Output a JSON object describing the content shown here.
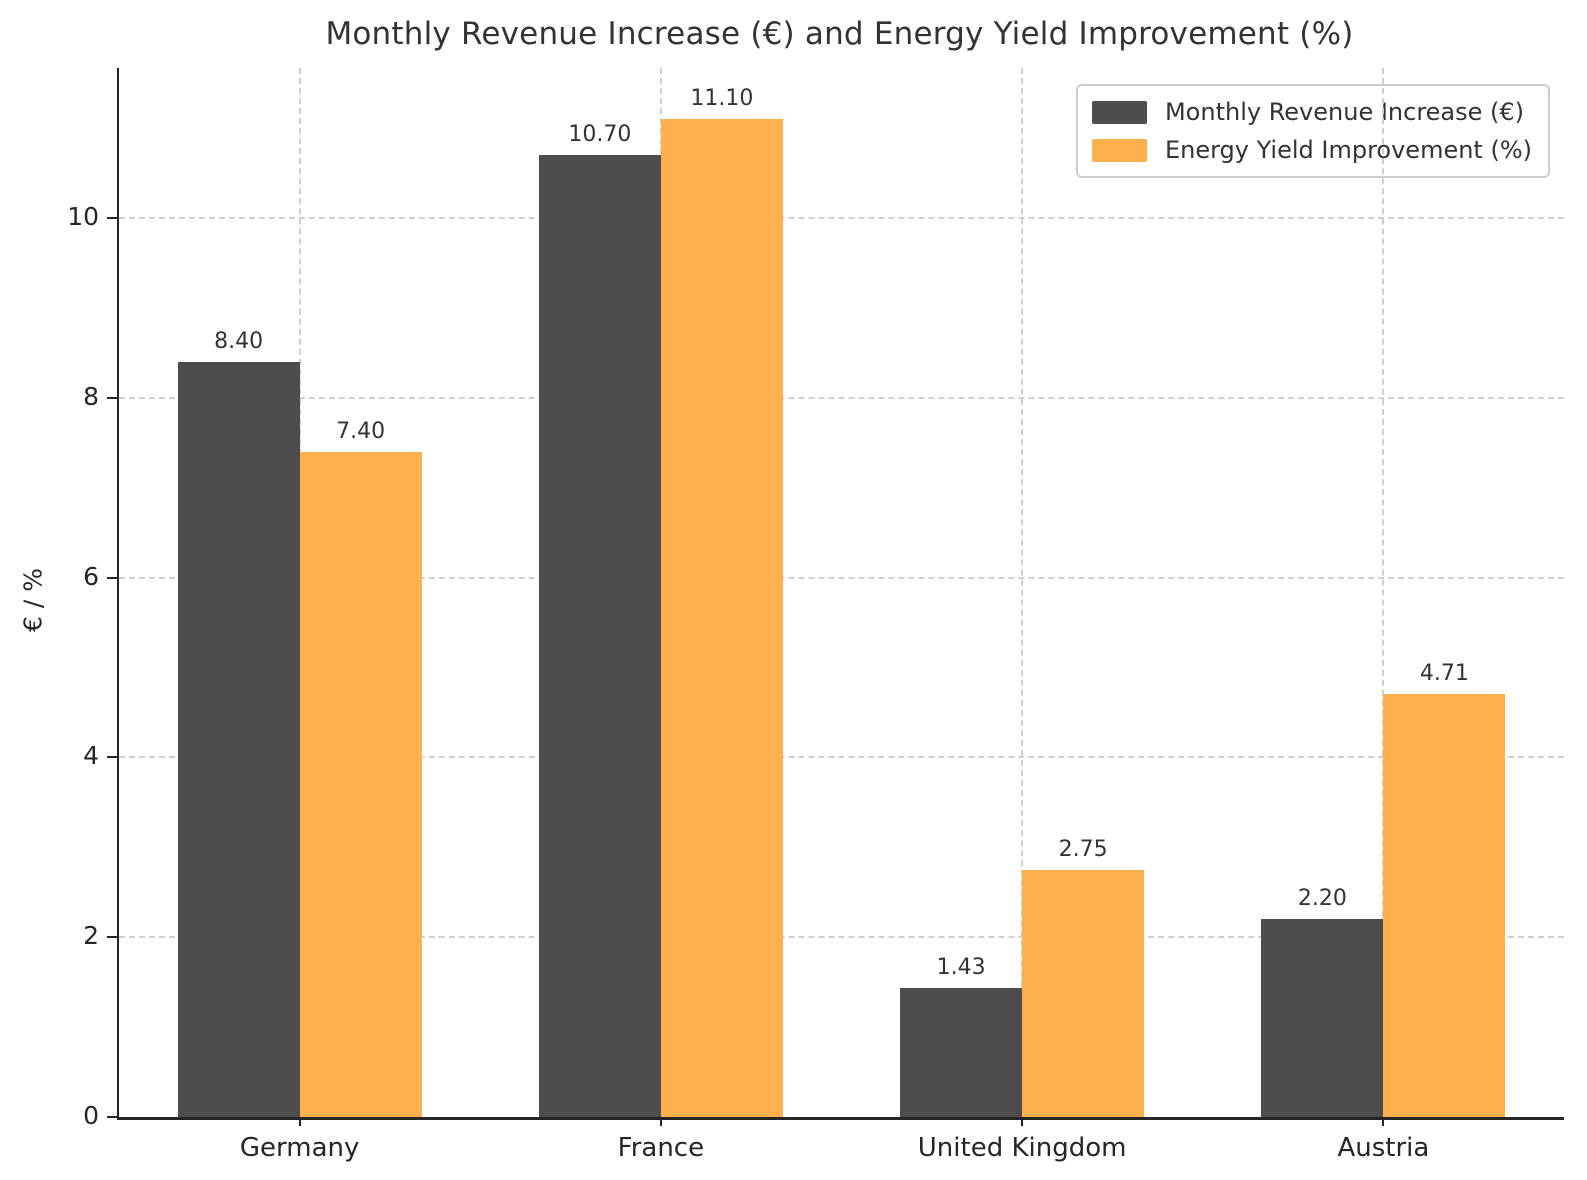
{
  "chart_data": {
    "type": "bar",
    "title": "Monthly Revenue Increase (€) and Energy Yield Improvement (%)",
    "ylabel": "€ / %",
    "xlabel": "",
    "categories": [
      "Germany",
      "France",
      "United Kingdom",
      "Austria"
    ],
    "series": [
      {
        "name": "Monthly Revenue Increase (€)",
        "color": "#4d4d4d",
        "values": [
          8.4,
          10.7,
          1.43,
          2.2
        ]
      },
      {
        "name": "Energy Yield Improvement (%)",
        "color": "#fdb04c",
        "values": [
          7.4,
          11.1,
          2.75,
          4.71
        ]
      }
    ],
    "yticks": [
      0,
      2,
      4,
      6,
      8,
      10
    ],
    "ylim": [
      0,
      11.67
    ],
    "grid": "dashed, horizontal at yticks and vertical at category centers",
    "legend_position": "upper right",
    "bar_value_label_decimals": 2
  }
}
